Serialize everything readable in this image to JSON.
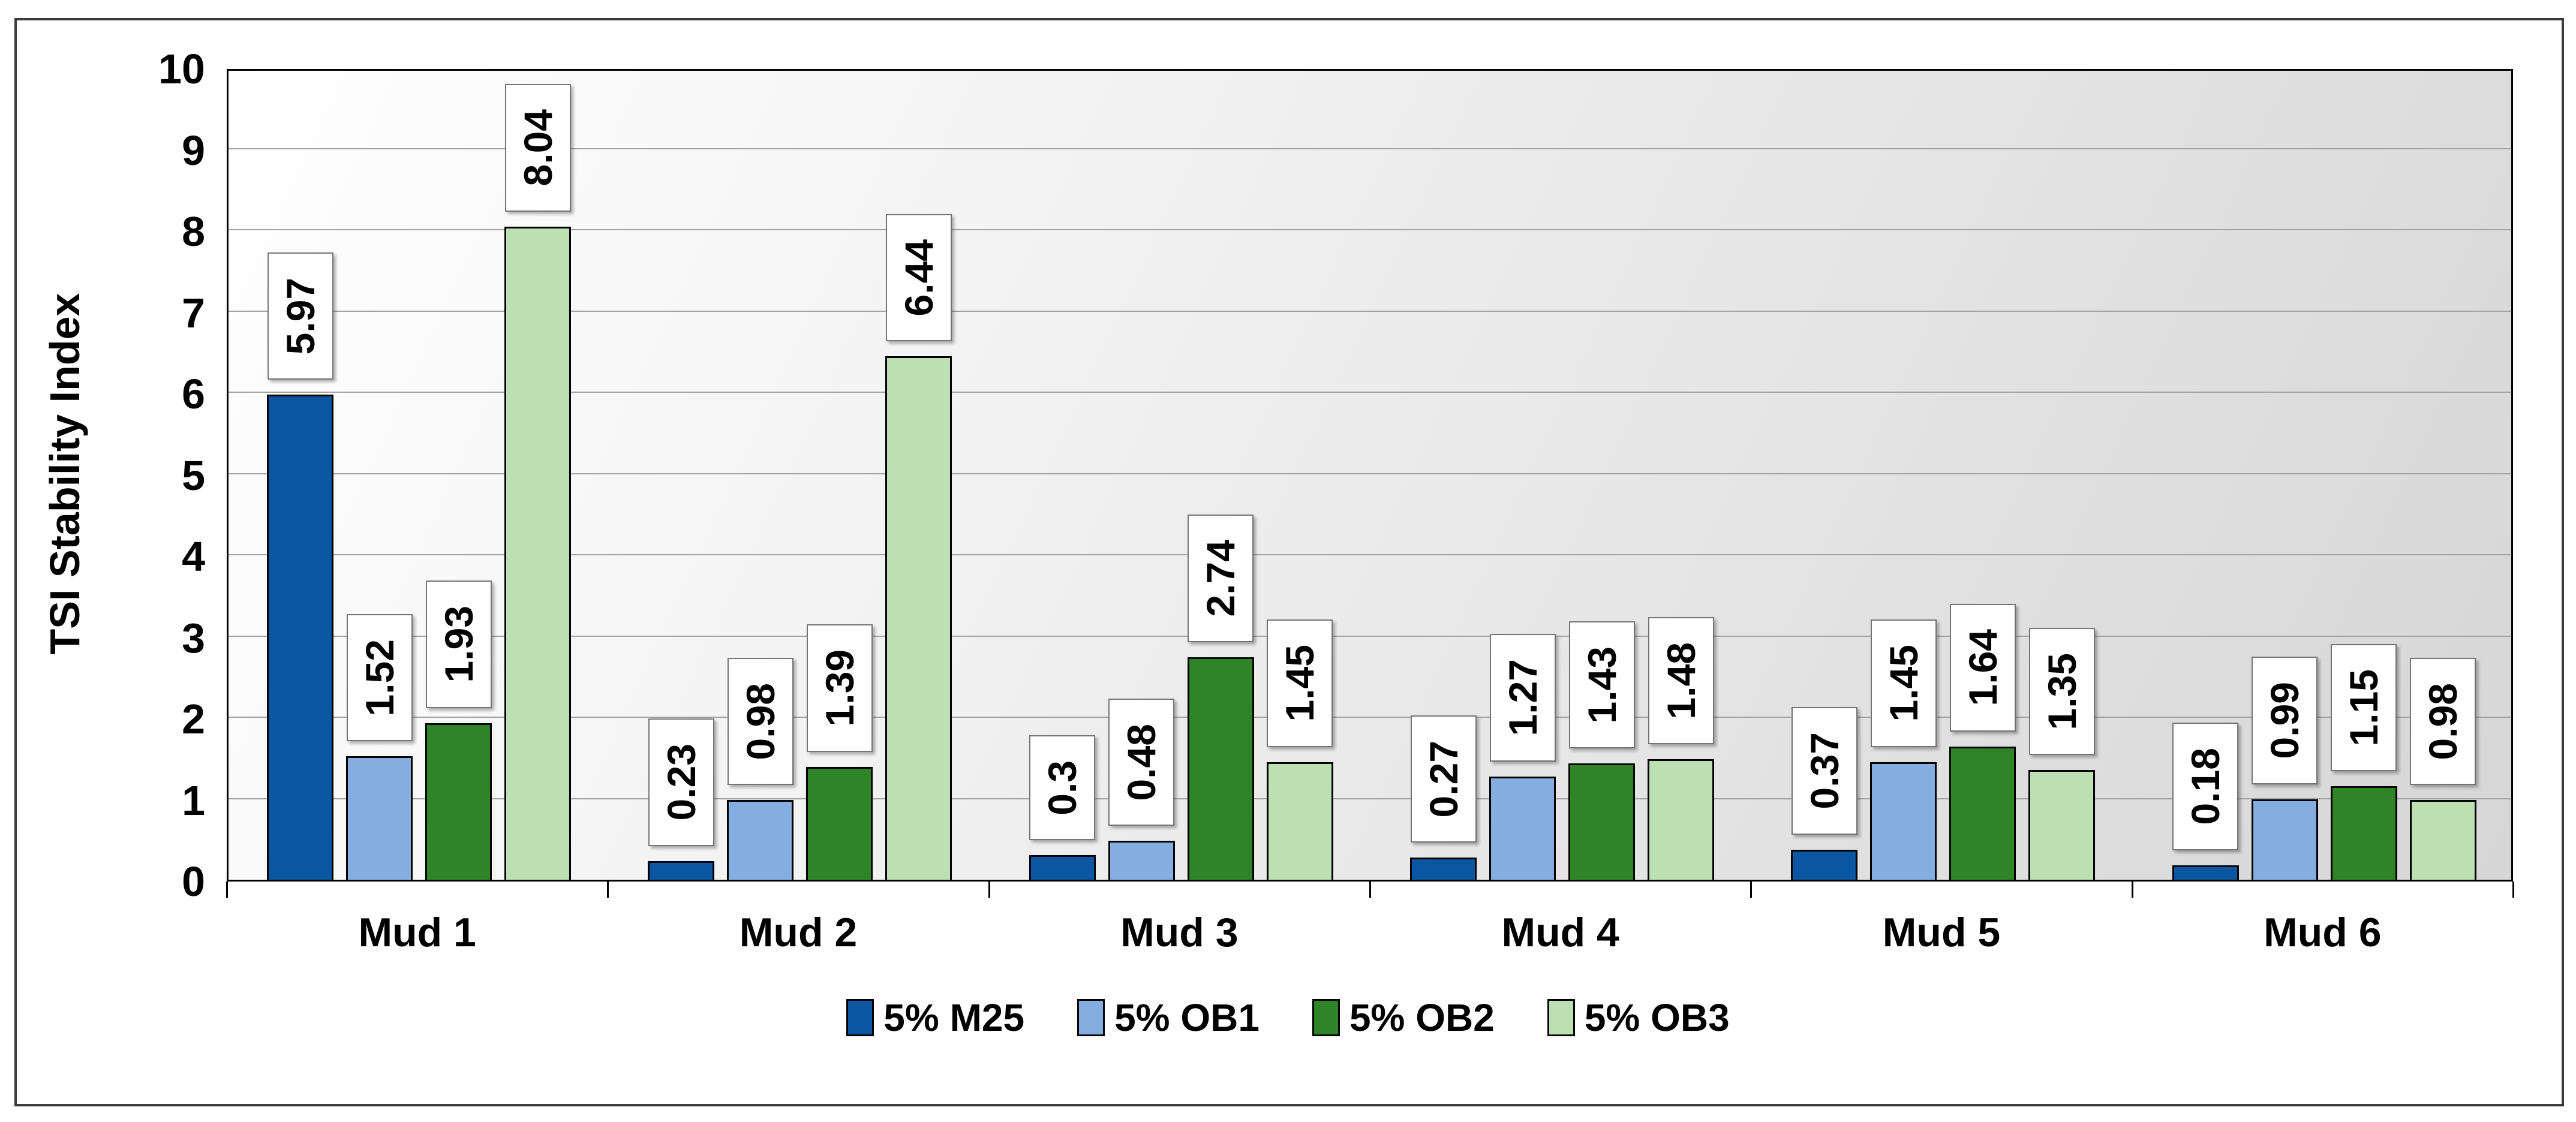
{
  "chart_data": {
    "type": "bar",
    "title": "",
    "xlabel": "",
    "ylabel": "TSI Stability Index",
    "ylim": [
      0,
      10
    ],
    "yticks": [
      0,
      1,
      2,
      3,
      4,
      5,
      6,
      7,
      8,
      9,
      10
    ],
    "grid": true,
    "legend_position": "bottom",
    "plot_background": "gradient white to gray",
    "categories": [
      "Mud 1",
      "Mud 2",
      "Mud 3",
      "Mud 4",
      "Mud 5",
      "Mud 6"
    ],
    "series": [
      {
        "name": "5% M25",
        "color": "#0A56A0",
        "values": [
          5.97,
          0.23,
          0.3,
          0.27,
          0.37,
          0.18
        ],
        "labels": [
          "5.97",
          "0.23",
          "0.3",
          "0.27",
          "0.37",
          "0.18"
        ]
      },
      {
        "name": "5% OB1",
        "color": "#85AEE0",
        "values": [
          1.52,
          0.98,
          0.48,
          1.27,
          1.45,
          0.99
        ],
        "labels": [
          "1.52",
          "0.98",
          "0.48",
          "1.27",
          "1.45",
          "0.99"
        ]
      },
      {
        "name": "5% OB2",
        "color": "#2F8428",
        "values": [
          1.93,
          1.39,
          2.74,
          1.43,
          1.64,
          1.15
        ],
        "labels": [
          "1.93",
          "1.39",
          "2.74",
          "1.43",
          "1.64",
          "1.15"
        ]
      },
      {
        "name": "5% OB3",
        "color": "#BDE0B3",
        "values": [
          8.04,
          6.44,
          1.45,
          1.48,
          1.35,
          0.98
        ],
        "labels": [
          "8.04",
          "6.44",
          "1.45",
          "1.48",
          "1.35",
          "0.98"
        ]
      }
    ],
    "colors": {
      "grid_line": "#A3A3A3",
      "plot_border": "#000000",
      "bar_outline": "#000000",
      "label_box_border": "#757575",
      "outer_border": "#3C3C3C"
    }
  }
}
